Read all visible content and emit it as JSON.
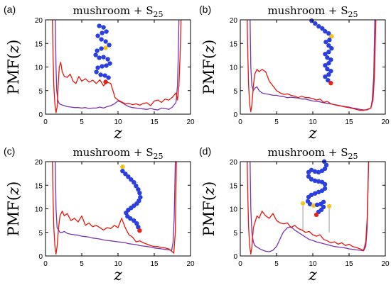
{
  "colors": {
    "series_red": "#e8160c",
    "series_purple": "#7a34b0",
    "bead_blue": "#2b3fe0",
    "bead_yellow": "#f2c21a",
    "bead_red": "#e3261c",
    "graft_gray": "#bdbdbd"
  },
  "chart_data": [
    {
      "type": "line",
      "panel": "(a)",
      "title": "mushroom + S25",
      "title_main": "mushroom + S",
      "title_sub": "25",
      "xlabel": "z",
      "ylabel": "PMF(z)",
      "xlim": [
        0,
        20
      ],
      "ylim": [
        0,
        20
      ],
      "xticks": [
        "0",
        "5",
        "10",
        "15",
        "20"
      ],
      "yticks": [
        "0",
        "5",
        "10",
        "15",
        "20"
      ],
      "grid": false,
      "molecule": "folded-chain",
      "series": [
        {
          "color": "red",
          "x": [
            0.95,
            1.05,
            1.15,
            1.3,
            1.45,
            1.6,
            1.75,
            1.9,
            2.1,
            2.3,
            2.6,
            3.0,
            3.4,
            3.8,
            4.2,
            4.6,
            5.0,
            5.5,
            6.0,
            6.5,
            7.0,
            7.5,
            8.0,
            8.5,
            9.0,
            9.3,
            9.6,
            10.0,
            10.5,
            11.0,
            11.5,
            12.0,
            12.5,
            13.0,
            13.5,
            14.0,
            14.5,
            15.0,
            15.5,
            16.0,
            16.5,
            17.0,
            17.5,
            18.0,
            18.2,
            18.4,
            18.55,
            18.7
          ],
          "y": [
            20,
            12,
            6,
            2,
            0.3,
            1.5,
            6,
            10,
            11,
            9,
            8,
            7.8,
            8.5,
            7,
            6.5,
            8,
            7,
            7.5,
            6.8,
            7.2,
            6.5,
            7.3,
            6,
            6.8,
            6.5,
            5,
            3.5,
            3,
            2.6,
            2.2,
            2.3,
            2,
            2.2,
            1.9,
            2.3,
            2.4,
            1.8,
            2.8,
            3,
            2.5,
            3.2,
            3,
            3.6,
            4.5,
            3,
            6,
            12,
            20
          ]
        },
        {
          "color": "purple",
          "x": [
            1.35,
            1.45,
            1.55,
            1.7,
            1.9,
            2.2,
            2.6,
            3.0,
            3.5,
            4.0,
            4.5,
            5.0,
            5.5,
            6.0,
            6.5,
            7.0,
            7.5,
            8.0,
            8.5,
            9.0,
            9.5,
            10.0,
            10.5,
            11.0,
            11.5,
            12.0,
            12.5,
            13.0,
            13.5,
            14.0,
            14.5,
            15.0,
            15.5,
            16.0,
            16.5,
            17.0,
            17.5,
            18.0,
            18.2,
            18.3,
            18.4
          ],
          "y": [
            20,
            10,
            5,
            3,
            2.2,
            2,
            1.8,
            1.6,
            1.5,
            1.4,
            1.4,
            1.3,
            1.4,
            1.2,
            1.3,
            1.3,
            1.5,
            1.3,
            1.6,
            1.8,
            2.2,
            2.8,
            2.5,
            2,
            1.6,
            1.4,
            1.3,
            1.2,
            1.1,
            1,
            1.2,
            1,
            0.9,
            1.3,
            1.2,
            1,
            1.5,
            2.5,
            6,
            12,
            20
          ]
        }
      ]
    },
    {
      "type": "line",
      "panel": "(b)",
      "title": "mushroom + S25",
      "title_main": "mushroom + S",
      "title_sub": "25",
      "xlabel": "z",
      "ylabel": "PMF(z)",
      "xlim": [
        0,
        20
      ],
      "ylim": [
        0,
        20
      ],
      "xticks": [
        "0",
        "5",
        "10",
        "15",
        "20"
      ],
      "yticks": [
        "0",
        "5",
        "10",
        "15",
        "20"
      ],
      "grid": false,
      "molecule": "bent-chain",
      "series": [
        {
          "color": "red",
          "x": [
            0.95,
            1.05,
            1.15,
            1.3,
            1.45,
            1.6,
            1.8,
            2.0,
            2.3,
            2.6,
            3.0,
            3.5,
            4.0,
            4.5,
            5.0,
            5.5,
            6.0,
            6.5,
            7.0,
            7.5,
            8.0,
            8.5,
            9.0,
            9.5,
            10.0,
            10.5,
            11.0,
            11.5,
            12.0,
            12.5,
            13.0,
            13.5,
            14.0,
            14.5,
            15.0,
            15.5,
            16.0,
            16.5,
            17.0,
            17.5,
            18.0,
            18.3,
            18.5,
            18.7
          ],
          "y": [
            20,
            12,
            6,
            2,
            0.5,
            2,
            6,
            8.5,
            9.5,
            9,
            9.5,
            9,
            7,
            6,
            5,
            4.5,
            4.2,
            4.3,
            4,
            3.8,
            3.5,
            3.8,
            3.5,
            3.5,
            3.3,
            3,
            3.2,
            2.5,
            2.7,
            2.2,
            2,
            1.8,
            1.7,
            1.5,
            1.4,
            1.2,
            1,
            0.8,
            0.8,
            1,
            1.3,
            3,
            8,
            20
          ]
        },
        {
          "color": "purple",
          "x": [
            1.35,
            1.45,
            1.6,
            1.8,
            2.0,
            2.3,
            2.6,
            3.0,
            3.5,
            4.0,
            4.5,
            5.0,
            5.5,
            6.0,
            6.5,
            7.0,
            7.5,
            8.0,
            8.5,
            9.0,
            9.5,
            10.0,
            10.5,
            11.0,
            11.5,
            12.0,
            12.5,
            13.0,
            13.5,
            14.0,
            14.5,
            15.0,
            15.5,
            16.0,
            16.5,
            17.0,
            17.5,
            18.0,
            18.2,
            18.4,
            18.55
          ],
          "y": [
            20,
            10,
            6,
            5,
            5.5,
            5.8,
            5,
            4.5,
            4.3,
            4.2,
            4,
            4,
            3.8,
            3.7,
            3.5,
            3.6,
            3.5,
            3.4,
            3.2,
            3.2,
            3,
            2.8,
            2.7,
            2.6,
            2.4,
            2.3,
            2.2,
            2,
            1.9,
            1.7,
            1.6,
            1.5,
            1.3,
            1.2,
            1,
            0.9,
            0.9,
            1.3,
            3,
            8,
            20
          ]
        }
      ]
    },
    {
      "type": "line",
      "panel": "(c)",
      "title": "mushroom + S25",
      "title_main": "mushroom + S",
      "title_sub": "25",
      "xlabel": "z",
      "ylabel": "PMF(z)",
      "xlim": [
        0,
        20
      ],
      "ylim": [
        0,
        20
      ],
      "xticks": [
        "0",
        "5",
        "10",
        "15",
        "20"
      ],
      "yticks": [
        "0",
        "5",
        "10",
        "15",
        "20"
      ],
      "grid": false,
      "molecule": "extended-chain",
      "series": [
        {
          "color": "red",
          "x": [
            0.95,
            1.05,
            1.15,
            1.3,
            1.45,
            1.6,
            1.8,
            2.0,
            2.3,
            2.6,
            3.0,
            3.5,
            4.0,
            4.5,
            5.0,
            5.5,
            6.0,
            6.5,
            7.0,
            7.5,
            8.0,
            8.5,
            9.0,
            9.5,
            10.0,
            10.5,
            11.0,
            11.5,
            12.0,
            12.5,
            13.0,
            13.5,
            14.0,
            14.5,
            15.0,
            15.5,
            16.0,
            16.5,
            17.0,
            17.4,
            17.7,
            17.9,
            18.05
          ],
          "y": [
            20,
            12,
            6,
            2,
            0.4,
            2,
            6,
            8.5,
            9.5,
            8.5,
            9,
            7.5,
            8,
            7.2,
            8.5,
            6.5,
            7,
            6.2,
            6.5,
            6,
            5.5,
            6,
            5.8,
            6.5,
            6,
            8,
            6,
            4.5,
            4,
            3,
            3.2,
            2.8,
            2.5,
            2.2,
            2,
            2,
            1.8,
            1.7,
            1.5,
            1,
            0.6,
            5,
            20
          ]
        },
        {
          "color": "purple",
          "x": [
            1.35,
            1.45,
            1.6,
            1.8,
            2.0,
            2.3,
            2.6,
            3.0,
            3.5,
            4.0,
            4.5,
            5.0,
            5.5,
            6.0,
            6.5,
            7.0,
            7.5,
            8.0,
            8.5,
            9.0,
            9.5,
            10.0,
            10.5,
            11.0,
            11.5,
            12.0,
            12.5,
            13.0,
            13.5,
            14.0,
            14.5,
            15.0,
            15.5,
            16.0,
            16.5,
            17.0,
            17.4,
            17.6,
            17.75,
            17.9
          ],
          "y": [
            20,
            10,
            6,
            5.5,
            5,
            5,
            5.2,
            4.8,
            4.6,
            4.5,
            4.4,
            4.2,
            4.1,
            4,
            3.8,
            3.7,
            3.6,
            3.4,
            3.3,
            3.2,
            3.1,
            3,
            2.9,
            2.8,
            2.6,
            2.5,
            2.4,
            2.2,
            2.1,
            2,
            1.9,
            1.7,
            1.6,
            1.5,
            1.4,
            1.3,
            1.2,
            3,
            8,
            20
          ]
        }
      ]
    },
    {
      "type": "line",
      "panel": "(d)",
      "title": "mushroom + S25",
      "title_main": "mushroom + S",
      "title_sub": "25",
      "xlabel": "z",
      "ylabel": "PMF(z)",
      "xlim": [
        0,
        20
      ],
      "ylim": [
        0,
        20
      ],
      "xticks": [
        "0",
        "5",
        "10",
        "15",
        "20"
      ],
      "yticks": [
        "0",
        "5",
        "10",
        "15",
        "20"
      ],
      "grid": false,
      "molecule": "chain-with-grafts",
      "series": [
        {
          "color": "red",
          "x": [
            0.95,
            1.05,
            1.15,
            1.3,
            1.45,
            1.6,
            1.8,
            2.0,
            2.3,
            2.6,
            3.0,
            3.5,
            4.0,
            4.5,
            5.0,
            5.5,
            6.0,
            6.5,
            7.0,
            7.5,
            8.0,
            8.5,
            9.0,
            9.5,
            10.0,
            10.5,
            11.0,
            11.5,
            12.0,
            12.5,
            13.0,
            13.5,
            14.0,
            14.5,
            15.0,
            15.5,
            16.0,
            16.5,
            17.0,
            17.3,
            17.5,
            17.7
          ],
          "y": [
            20,
            12,
            6,
            2,
            0.4,
            2,
            6,
            7,
            8.5,
            8,
            9.5,
            8.5,
            8,
            9,
            7.5,
            7,
            6.8,
            7,
            6,
            6.5,
            5.8,
            5.5,
            5,
            5.2,
            4.5,
            4.2,
            4.5,
            3.5,
            3.2,
            2.8,
            3,
            2.5,
            2.8,
            2.2,
            2.5,
            2,
            1.8,
            1.5,
            1.2,
            3,
            8,
            20
          ]
        },
        {
          "color": "purple",
          "x": [
            1.35,
            1.45,
            1.6,
            1.8,
            2.0,
            2.3,
            2.6,
            3.0,
            3.5,
            4.0,
            4.5,
            5.0,
            5.3,
            5.6,
            5.9,
            6.2,
            6.5,
            7.0,
            7.5,
            8.0,
            8.5,
            9.0,
            9.5,
            10.0,
            10.5,
            11.0,
            11.5,
            12.0,
            12.5,
            13.0,
            13.5,
            14.0,
            14.5,
            15.0,
            15.5,
            16.0,
            16.5,
            17.0,
            17.3,
            17.5,
            17.7
          ],
          "y": [
            20,
            10,
            5,
            3,
            2.2,
            1.9,
            1.6,
            1.3,
            1,
            0.9,
            1.2,
            2,
            3,
            4,
            5,
            5.5,
            6,
            6.2,
            5.5,
            5,
            4.5,
            4,
            3.5,
            3.3,
            3,
            2.8,
            2.6,
            2.4,
            2.2,
            2,
            1.9,
            1.8,
            1.7,
            1.5,
            1.4,
            1.3,
            1.2,
            1.1,
            2,
            6,
            20
          ]
        }
      ]
    }
  ]
}
